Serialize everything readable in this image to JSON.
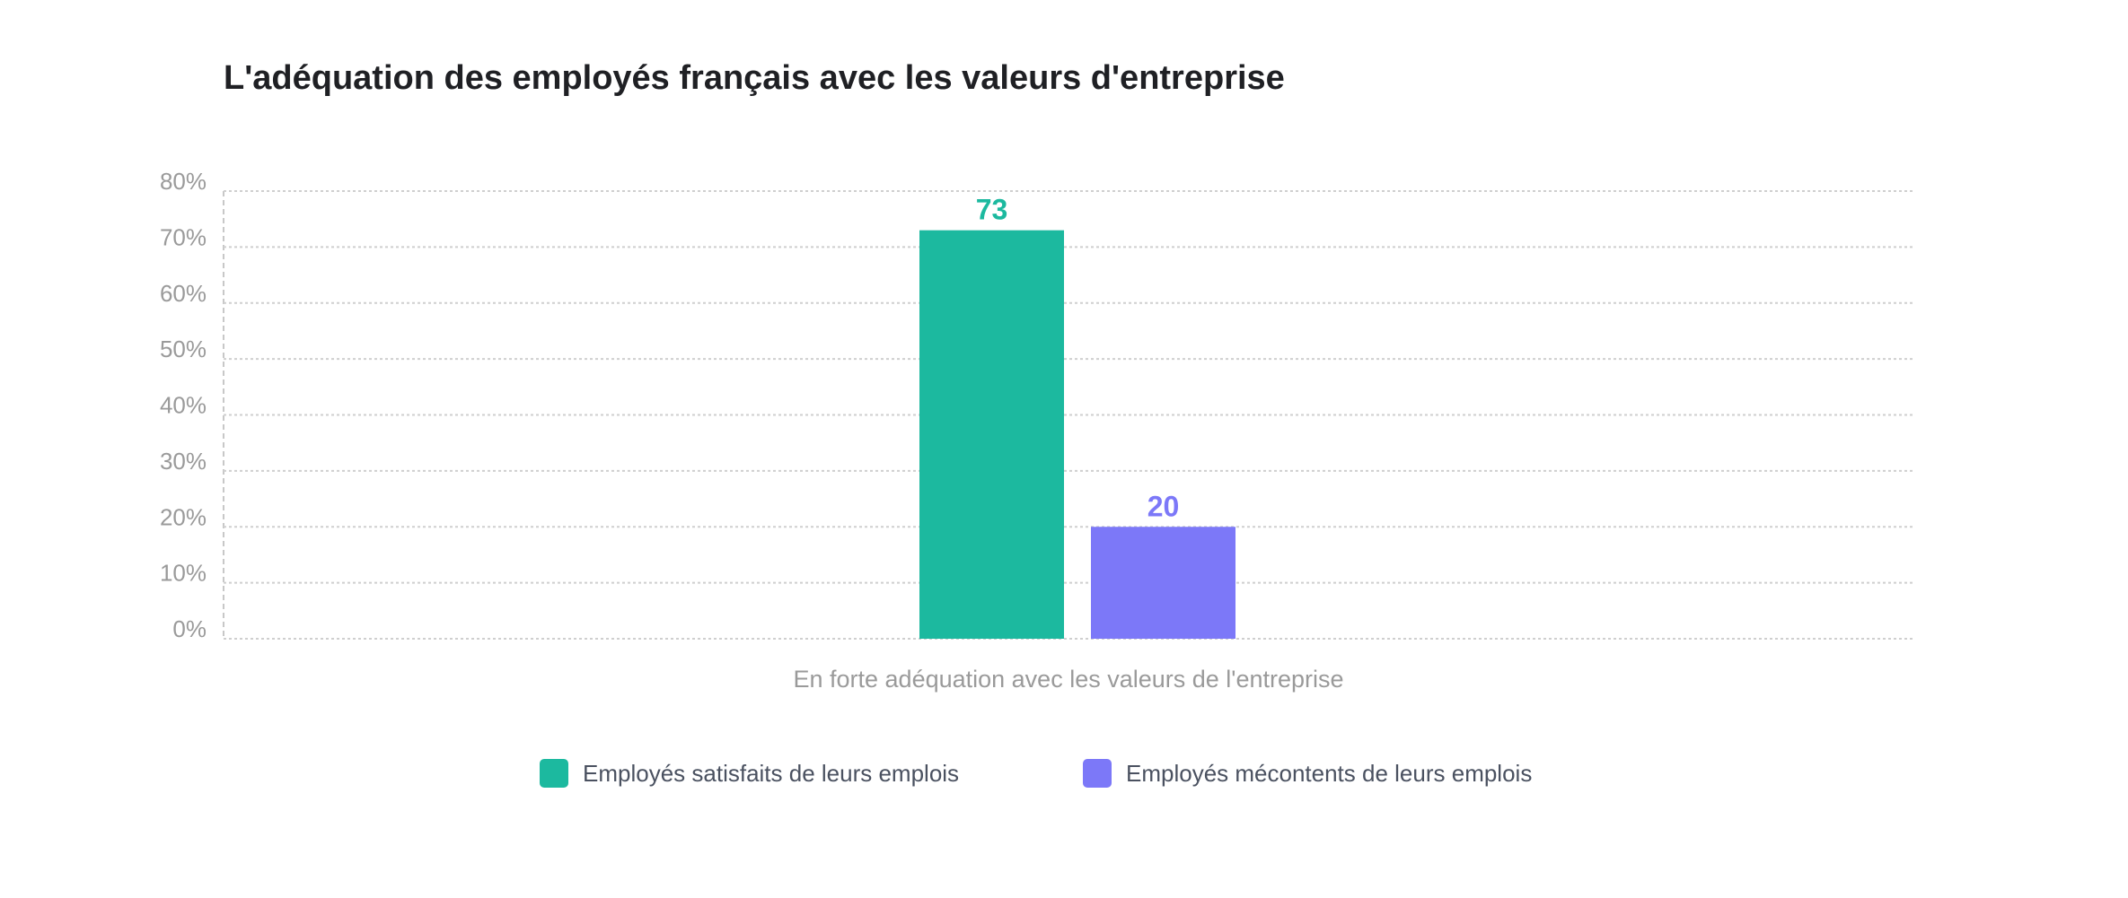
{
  "chart_data": {
    "type": "bar",
    "title": "L'adéquation des employés français avec les valeurs d'entreprise",
    "categories": [
      "En forte adéquation avec les valeurs de l'entreprise"
    ],
    "series": [
      {
        "name": "Employés satisfaits de leurs emplois",
        "values": [
          73
        ],
        "color": "#1cb99f"
      },
      {
        "name": "Employés mécontents de leurs emplois",
        "values": [
          20
        ],
        "color": "#7c78f8"
      }
    ],
    "ylim": [
      0,
      80
    ],
    "yticks": [
      "0%",
      "10%",
      "20%",
      "30%",
      "40%",
      "50%",
      "60%",
      "70%",
      "80%"
    ],
    "grid": true,
    "legend": "bottom"
  }
}
